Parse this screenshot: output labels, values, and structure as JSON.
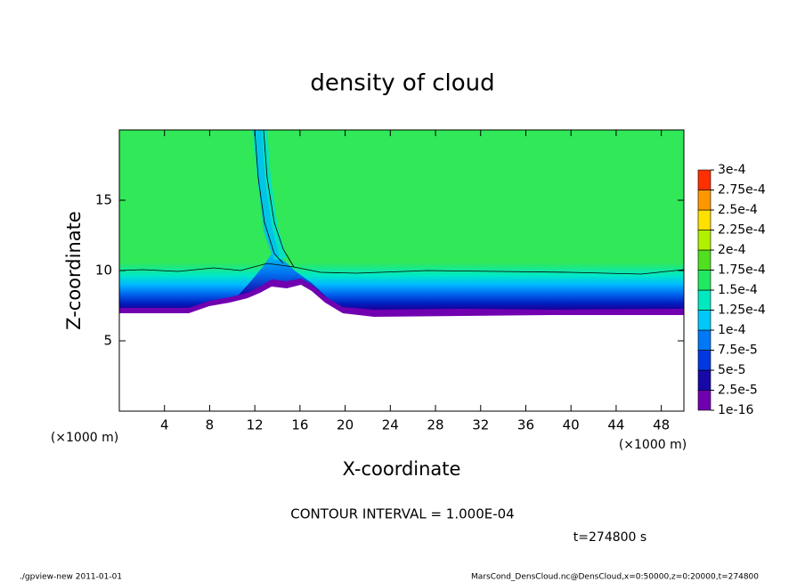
{
  "chart_data": {
    "type": "contour",
    "title": "density of cloud",
    "xlabel": "X-coordinate",
    "ylabel": "Z-coordinate",
    "xunit": "(×1000 m)",
    "yunit": "(×1000 m)",
    "xlim": [
      0,
      50
    ],
    "xticks": [
      4,
      8,
      12,
      16,
      20,
      24,
      28,
      32,
      36,
      40,
      44,
      48
    ],
    "ylim": [
      0,
      20
    ],
    "yticks": [
      5,
      10,
      15
    ],
    "colorbar": {
      "levels": [
        {
          "value": 1e-16,
          "label": "1e-16"
        },
        {
          "value": 2.5e-05,
          "label": "2.5e-5"
        },
        {
          "value": 5e-05,
          "label": "5e-5"
        },
        {
          "value": 7.5e-05,
          "label": "7.5e-5"
        },
        {
          "value": 0.0001,
          "label": "1e-4"
        },
        {
          "value": 0.000125,
          "label": "1.25e-4"
        },
        {
          "value": 0.00015,
          "label": "1.5e-4"
        },
        {
          "value": 0.000175,
          "label": "1.75e-4"
        },
        {
          "value": 0.0002,
          "label": "2e-4"
        },
        {
          "value": 0.000225,
          "label": "2.25e-4"
        },
        {
          "value": 0.00025,
          "label": "2.5e-4"
        },
        {
          "value": 0.000275,
          "label": "2.75e-4"
        },
        {
          "value": 0.0003,
          "label": "3e-4"
        }
      ],
      "colors": [
        "#7000b0",
        "#1808a8",
        "#0038e0",
        "#0078f8",
        "#00c8f8",
        "#00e8c0",
        "#20e860",
        "#50e020",
        "#b0f000",
        "#ffe000",
        "#ff9800",
        "#ff3000"
      ]
    },
    "contour_interval": "CONTOUR INTERVAL = 1.000E-04",
    "time_label": "t=274800 s",
    "footer_left": "./gpview-new  2011-01-01",
    "footer_right": "MarsCond_DensCloud.nc@DensCloud,x=0:50000,z=0:20000,t=274800"
  }
}
